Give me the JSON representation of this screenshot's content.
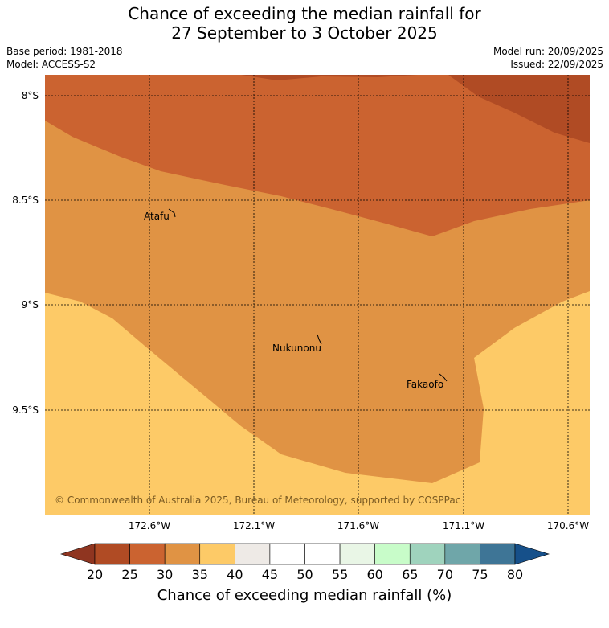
{
  "header": {
    "title_line1": "Chance of exceeding the median rainfall for",
    "title_line2": "27 September to 3 October 2025",
    "base_period": "Base period: 1981-2018",
    "model": "Model: ACCESS-S2",
    "model_run": "Model run: 20/09/2025",
    "issued": "Issued: 22/09/2025"
  },
  "map": {
    "lat_ticks": [
      "8°S",
      "8.5°S",
      "9°S",
      "9.5°S"
    ],
    "lon_ticks": [
      "172.6°W",
      "172.1°W",
      "171.6°W",
      "171.1°W",
      "170.6°W"
    ],
    "places": [
      {
        "name": "Atafu"
      },
      {
        "name": "Nukunonu"
      },
      {
        "name": "Fakaofo"
      }
    ],
    "copyright": "© Commonwealth of Australia 2025, Bureau of Meteorology, supported by COSPPac"
  },
  "colorbar": {
    "ticks": [
      "20",
      "25",
      "30",
      "35",
      "40",
      "45",
      "50",
      "55",
      "60",
      "65",
      "70",
      "75",
      "80"
    ],
    "colors": [
      "#b04b24",
      "#cb6330",
      "#e09344",
      "#fdca67",
      "#eeeae6",
      "#ffffff",
      "#ffffff",
      "#e9f6e6",
      "#c8fcc9",
      "#9fd3bd",
      "#6fa6a9",
      "#3e7596"
    ],
    "under_color": "#8f3520",
    "over_color": "#16508a",
    "label": "Chance of exceeding median rainfall (%)"
  }
}
